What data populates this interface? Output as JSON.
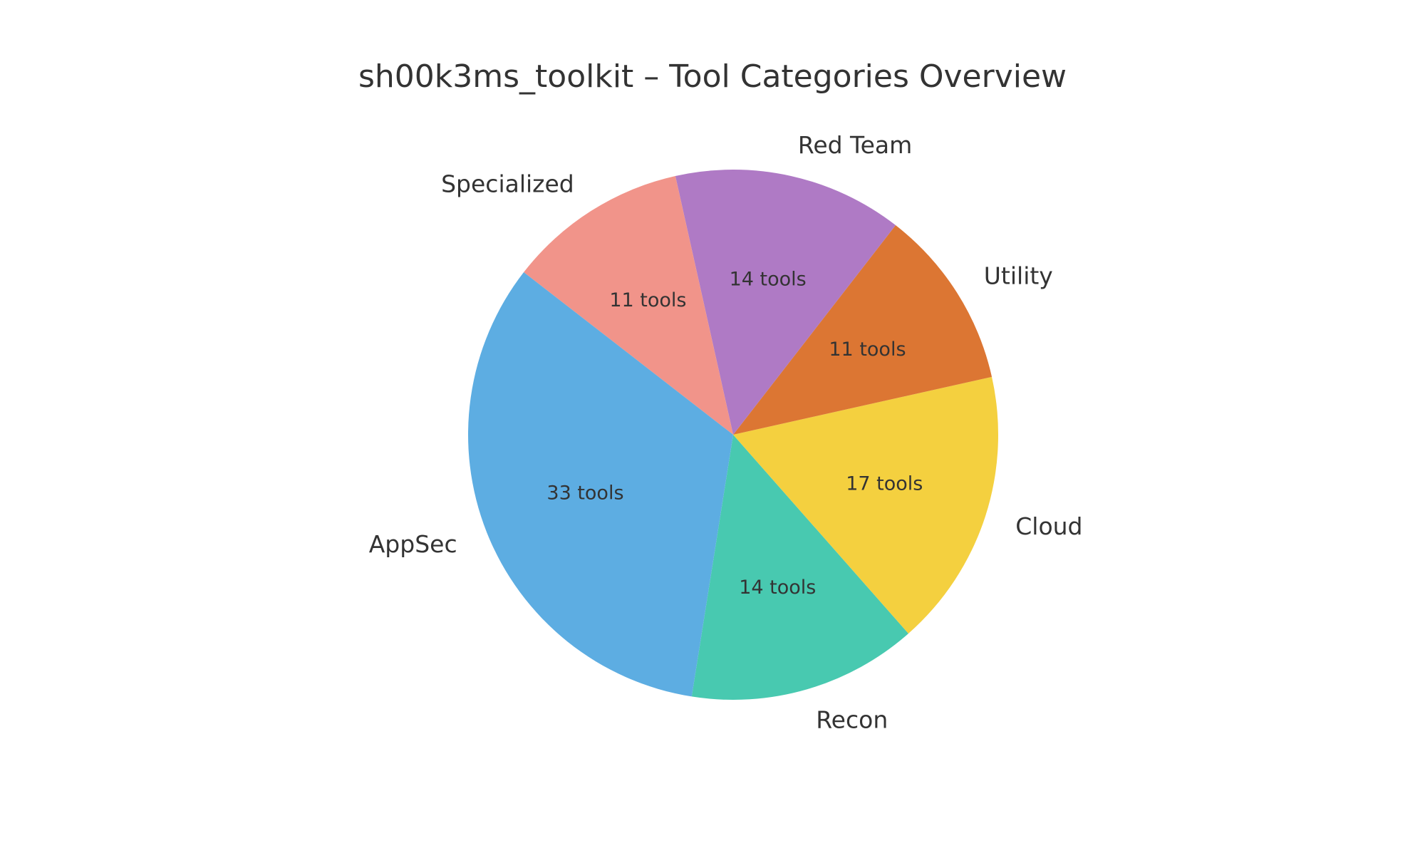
{
  "chart_data": {
    "type": "pie",
    "title": "sh00k3ms_toolkit – Tool Categories Overview",
    "value_suffix": " tools",
    "slices": [
      {
        "label": "Recon",
        "value": 14,
        "color": "#48c9b0"
      },
      {
        "label": "Cloud",
        "value": 17,
        "color": "#f4d03f"
      },
      {
        "label": "Utility",
        "value": 11,
        "color": "#dc7633"
      },
      {
        "label": "Red Team",
        "value": 14,
        "color": "#af7ac5"
      },
      {
        "label": "Specialized",
        "value": 11,
        "color": "#f1948a"
      },
      {
        "label": "AppSec",
        "value": 33,
        "color": "#5dade2"
      }
    ],
    "start_angle_deg": 261,
    "direction": "counterclockwise",
    "legend": "none"
  }
}
